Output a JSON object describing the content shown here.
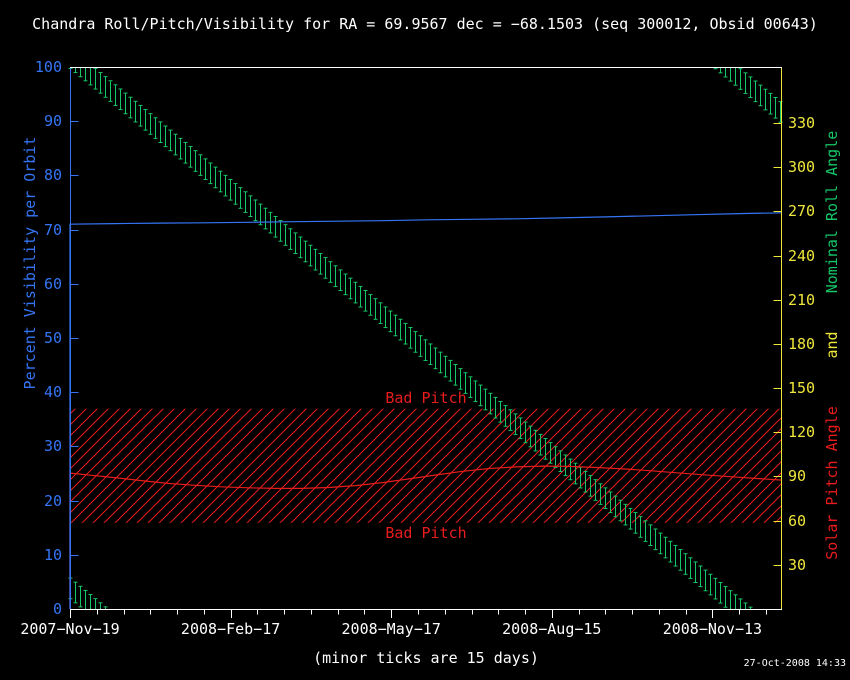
{
  "title": "Chandra Roll/Pitch/Visibility for RA = 69.9567 dec = −68.1503 (seq 300012, Obsid 00643)",
  "footer": {
    "timestamp": "27-Oct-2008 14:33"
  },
  "colors": {
    "background": "#000000",
    "frame_white": "#ffffff",
    "visibility_blue": "#3575f5",
    "roll_green": "#16c768",
    "axis_yellow": "#efe63a",
    "pitch_red": "#e81c1c"
  },
  "chart_data": {
    "type": "line",
    "title": "Chandra Roll/Pitch/Visibility for RA = 69.9567 dec = −68.1503 (seq 300012, Obsid 00643)",
    "x_axis": {
      "tick_labels": [
        "2007−Nov−19",
        "2008−Feb−17",
        "2008−May−17",
        "2008−Aug−15",
        "2008−Nov−13"
      ],
      "tick_days": [
        0,
        90,
        180,
        270,
        360
      ],
      "minor_tick_days": 15,
      "span_days": 399,
      "note": "(minor ticks are 15 days)"
    },
    "left_axis": {
      "label": "Percent Visibility per Orbit",
      "range": [
        0,
        100
      ],
      "ticks": [
        0,
        10,
        20,
        30,
        40,
        50,
        60,
        70,
        80,
        90,
        100
      ],
      "color": "#3575f5"
    },
    "right_axis": {
      "label_parts": [
        {
          "text": "Nominal Roll Angle",
          "color": "#16c768"
        },
        {
          "text": "and",
          "color": "#efe63a"
        },
        {
          "text": "Solar Pitch Angle",
          "color": "#e81c1c"
        }
      ],
      "range": [
        0,
        368
      ],
      "ticks": [
        30,
        60,
        90,
        120,
        150,
        180,
        210,
        240,
        270,
        300,
        330
      ],
      "color": "#efe63a"
    },
    "bad_pitch_band": {
      "label": "Bad Pitch",
      "min_deg": 58.5,
      "max_deg": 136,
      "color": "#e81c1c",
      "hatch_spacing_px": 11
    },
    "series": [
      {
        "name": "Percent Visibility per Orbit",
        "axis": "left",
        "color": "#3575f5",
        "style": "line",
        "starts_at_zero": true,
        "points": [
          [
            0,
            71.0
          ],
          [
            25,
            71.1
          ],
          [
            50,
            71.2
          ],
          [
            75,
            71.25
          ],
          [
            100,
            71.35
          ],
          [
            125,
            71.45
          ],
          [
            150,
            71.55
          ],
          [
            175,
            71.65
          ],
          [
            200,
            71.8
          ],
          [
            225,
            71.9
          ],
          [
            250,
            72.0
          ],
          [
            275,
            72.15
          ],
          [
            300,
            72.35
          ],
          [
            325,
            72.55
          ],
          [
            350,
            72.75
          ],
          [
            375,
            72.95
          ],
          [
            399,
            73.1
          ]
        ]
      },
      {
        "name": "Solar Pitch Angle",
        "axis": "right",
        "color": "#e81c1c",
        "style": "line",
        "starts_at_zero": true,
        "points": [
          [
            0,
            92.3
          ],
          [
            12,
            90.8
          ],
          [
            25,
            89.2
          ],
          [
            40,
            87.2
          ],
          [
            55,
            85.3
          ],
          [
            70,
            84.0
          ],
          [
            85,
            83.0
          ],
          [
            100,
            82.3
          ],
          [
            115,
            81.9
          ],
          [
            130,
            81.9
          ],
          [
            145,
            82.5
          ],
          [
            160,
            83.8
          ],
          [
            175,
            85.8
          ],
          [
            190,
            88.3
          ],
          [
            205,
            91.0
          ],
          [
            220,
            93.5
          ],
          [
            235,
            95.4
          ],
          [
            250,
            96.5
          ],
          [
            265,
            97.0
          ],
          [
            280,
            96.8
          ],
          [
            295,
            96.1
          ],
          [
            310,
            95.1
          ],
          [
            325,
            93.9
          ],
          [
            340,
            92.5
          ],
          [
            355,
            91.1
          ],
          [
            370,
            89.8
          ],
          [
            385,
            88.6
          ],
          [
            399,
            87.5
          ]
        ]
      },
      {
        "name": "Nominal Roll Angle",
        "axis": "right",
        "color": "#16c768",
        "style": "error_bars",
        "start_deg": 14,
        "slope_deg_per_day": -0.9972,
        "bar_half_height_deg": 7,
        "bar_spacing_days": 2.8
      }
    ]
  }
}
